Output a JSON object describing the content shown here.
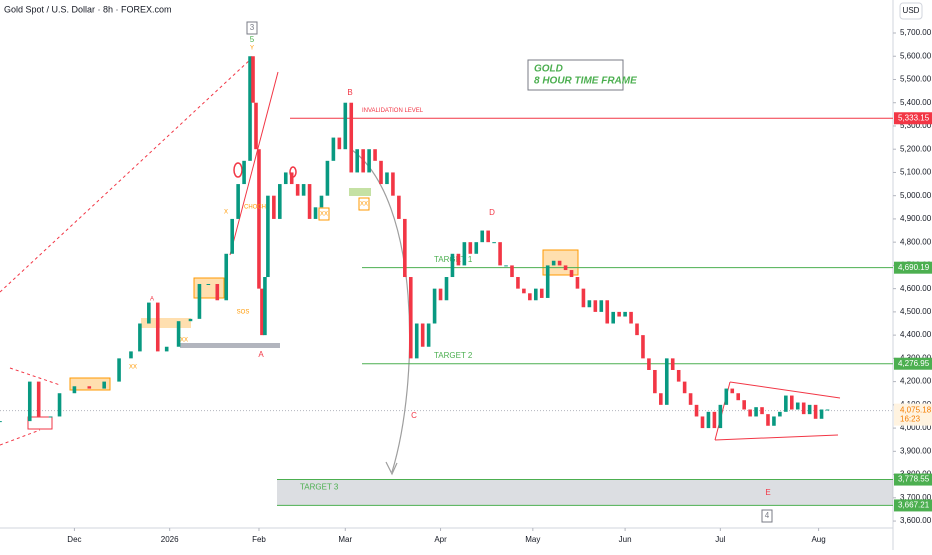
{
  "chart_data": {
    "type": "candlestick",
    "title": "Gold Spot / U.S. Dollar · 8h · FOREX.com",
    "currency": "USD",
    "box_text": [
      "GOLD",
      "8 HOUR TIME FRAME"
    ],
    "x": [
      0,
      10,
      13,
      17,
      20,
      25,
      30,
      35,
      40,
      44,
      47,
      50,
      53,
      56,
      60,
      64,
      67,
      70,
      73,
      76,
      78,
      80,
      82,
      84,
      85,
      86,
      87,
      88,
      89,
      90,
      92,
      94,
      96,
      98,
      100,
      102,
      104,
      106,
      108,
      110,
      112,
      114,
      116,
      118,
      120,
      122,
      124,
      126,
      128,
      130,
      132,
      134,
      136,
      138,
      140,
      142,
      144,
      146,
      148,
      150,
      152,
      154,
      156,
      158,
      160,
      162,
      164,
      166,
      168,
      170,
      172,
      174,
      176,
      178,
      180,
      182,
      184,
      186,
      188,
      190,
      192,
      194,
      196,
      198,
      200,
      202,
      204,
      206,
      208,
      210,
      212,
      214,
      216,
      218,
      220,
      222,
      224,
      226,
      228,
      230,
      232,
      234,
      236,
      238,
      240,
      242,
      244,
      246,
      248,
      250,
      252,
      254,
      256,
      258,
      260,
      262,
      264,
      266,
      268,
      270,
      272,
      274,
      276,
      278
    ],
    "values": [
      4030,
      4200,
      4050,
      4050,
      4150,
      4180,
      4170,
      4200,
      4300,
      4330,
      4450,
      4540,
      4330,
      4350,
      4460,
      4470,
      4620,
      4620,
      4550,
      4750,
      4900,
      5050,
      5150,
      5600,
      5400,
      5200,
      4600,
      4400,
      4650,
      5000,
      4900,
      5050,
      5100,
      5050,
      5000,
      5050,
      4900,
      4950,
      5000,
      5150,
      5250,
      5200,
      5400,
      5100,
      5200,
      5100,
      5200,
      5150,
      5050,
      5100,
      5000,
      4900,
      4650,
      4300,
      4450,
      4350,
      4450,
      4600,
      4550,
      4650,
      4750,
      4700,
      4800,
      4750,
      4800,
      4850,
      4800,
      4800,
      4700,
      4700,
      4650,
      4600,
      4580,
      4550,
      4600,
      4560,
      4700,
      4720,
      4700,
      4680,
      4650,
      4600,
      4520,
      4550,
      4500,
      4550,
      4450,
      4500,
      4480,
      4500,
      4450,
      4400,
      4300,
      4250,
      4150,
      4100,
      4300,
      4250,
      4200,
      4150,
      4100,
      4050,
      4000,
      4070,
      4000,
      4100,
      4170,
      4150,
      4120,
      4080,
      4050,
      4090,
      4060,
      4010,
      4050,
      4070,
      4140,
      4080,
      4110,
      4060,
      4100,
      4040,
      4080,
      4080
    ],
    "up_color": "#089981",
    "down_color": "#f23645",
    "xlim": [
      0,
      300
    ],
    "xticks": [
      {
        "value": 25,
        "label": "Dec"
      },
      {
        "value": 57,
        "label": "2026"
      },
      {
        "value": 87,
        "label": "Feb"
      },
      {
        "value": 116,
        "label": "Mar"
      },
      {
        "value": 148,
        "label": "Apr"
      },
      {
        "value": 179,
        "label": "May"
      },
      {
        "value": 210,
        "label": "Jun"
      },
      {
        "value": 242,
        "label": "Jul"
      },
      {
        "value": 275,
        "label": "Aug"
      }
    ],
    "ylim": [
      3583,
      5842
    ],
    "yticks": [
      {
        "value": 3600,
        "label": "3,600.00"
      },
      {
        "value": 3700,
        "label": "3,700.00"
      },
      {
        "value": 3800,
        "label": "3,800.00"
      },
      {
        "value": 3900,
        "label": "3,900.00"
      },
      {
        "value": 4000,
        "label": "4,000.00"
      },
      {
        "value": 4100,
        "label": "4,100.00"
      },
      {
        "value": 4200,
        "label": "4,200.00"
      },
      {
        "value": 4300,
        "label": "4,300.00"
      },
      {
        "value": 4400,
        "label": "4,400.00"
      },
      {
        "value": 4500,
        "label": "4,500.00"
      },
      {
        "value": 4600,
        "label": "4,600.00"
      },
      {
        "value": 4700,
        "label": "4,700.00"
      },
      {
        "value": 4800,
        "label": "4,800.00"
      },
      {
        "value": 4900,
        "label": "4,900.00"
      },
      {
        "value": 5000,
        "label": "5,000.00"
      },
      {
        "value": 5100,
        "label": "5,100.00"
      },
      {
        "value": 5200,
        "label": "5,200.00"
      },
      {
        "value": 5300,
        "label": "5,300.00"
      },
      {
        "value": 5400,
        "label": "5,400.00"
      },
      {
        "value": 5500,
        "label": "5,500.00"
      },
      {
        "value": 5600,
        "label": "5,600.00"
      },
      {
        "value": 5700,
        "label": "5,700.00"
      }
    ],
    "levels": [
      {
        "label": "INVALIDATION LEVEL",
        "value": 5333.15,
        "value_label": "5,333.15",
        "color": "#f23645"
      },
      {
        "label": "TARGET 1",
        "value": 4690.19,
        "value_label": "4,690.19",
        "color": "#4caf50"
      },
      {
        "label": "TARGET 2",
        "value": 4276.95,
        "value_label": "4,276.95",
        "color": "#4caf50"
      }
    ],
    "zone": {
      "label": "TARGET 3",
      "low": 3667.21,
      "high": 3778.55,
      "low_label": "3,667.21",
      "high_label": "3,778.55",
      "color": "#4caf50"
    },
    "last_price": {
      "value": 4075.18,
      "label": "4,075.18",
      "countdown": "16:23"
    },
    "annotations": [
      "3",
      "5",
      "B",
      "D",
      "C",
      "A",
      "E",
      "4",
      "CHOCH",
      "SOS",
      "XX",
      "XX",
      "XX",
      "XX",
      "A",
      "X",
      "Y"
    ]
  }
}
